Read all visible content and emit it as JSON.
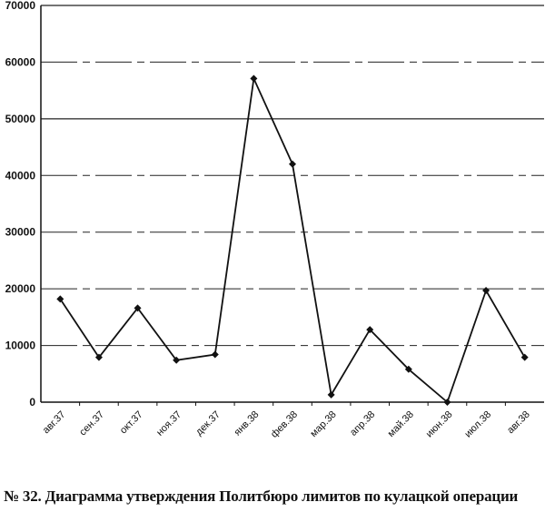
{
  "caption": "№ 32. Диаграмма утверждения Политбюро лимитов по кулацкой операции",
  "chart_data": {
    "type": "line",
    "title": "",
    "xlabel": "",
    "ylabel": "",
    "categories": [
      "авг.37",
      "сен.37",
      "окт.37",
      "ноя.37",
      "дек.37",
      "янв.38",
      "фев.38",
      "мар.38",
      "апр.38",
      "май.38",
      "июн.38",
      "июл.38",
      "авг.38"
    ],
    "series": [
      {
        "values": [
          18200,
          7900,
          16600,
          7400,
          8400,
          57100,
          42000,
          1300,
          12800,
          5800,
          0,
          19700,
          7900
        ]
      }
    ],
    "ylim": [
      0,
      70000
    ],
    "yticks": [
      0,
      10000,
      20000,
      30000,
      40000,
      50000,
      60000,
      70000
    ],
    "grid": true,
    "legend": "none",
    "marker": "diamond",
    "line_color": "#111111"
  }
}
